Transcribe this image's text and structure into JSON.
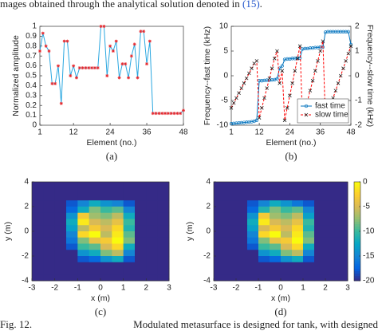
{
  "top_text": [
    "mages obtained through the analytical solution denoted in ",
    "(15)",
    "."
  ],
  "caption": [
    "Fig. 12.",
    "Modulated metasurface is designed for tank, with designed"
  ],
  "chart_data": [
    {
      "type": "line",
      "label": "(a)",
      "xlabel": "Element (no.)",
      "ylabel": "Normalized amplitude",
      "x": [
        1,
        2,
        3,
        4,
        5,
        6,
        7,
        8,
        9,
        10,
        11,
        12,
        13,
        14,
        15,
        16,
        17,
        18,
        19,
        20,
        21,
        22,
        23,
        24,
        25,
        26,
        27,
        28,
        29,
        30,
        31,
        32,
        33,
        34,
        35,
        36,
        37,
        38,
        39,
        40,
        41,
        42,
        43,
        44,
        45,
        46,
        47,
        48
      ],
      "series": [
        {
          "color": "#2aa7e0",
          "marker_color": "#e8262b",
          "values": [
            0.75,
            0.93,
            0.8,
            0.75,
            0.42,
            0.42,
            0.6,
            0.22,
            0.85,
            0.85,
            0.5,
            0.6,
            0.48,
            0.58,
            0.58,
            0.58,
            0.58,
            0.58,
            0.58,
            0.58,
            1,
            1,
            0.5,
            0.8,
            0.75,
            0.85,
            0.48,
            0.62,
            0.62,
            0.48,
            0.7,
            0.82,
            0.48,
            0.95,
            0.95,
            0.62,
            0.85,
            0.12,
            0.12,
            0.12,
            0.12,
            0.12,
            0.12,
            0.12,
            0.12,
            0.12,
            0.12,
            0.15
          ]
        }
      ],
      "xlim": [
        1,
        48
      ],
      "xticks": [
        1,
        12,
        24,
        36,
        48
      ],
      "ylim": [
        0,
        1
      ],
      "yticks": [
        0,
        0.1,
        0.2,
        0.3,
        0.4,
        0.5,
        0.6,
        0.7,
        0.8,
        0.9,
        1
      ]
    },
    {
      "type": "line",
      "label": "(b)",
      "xlabel": "Element (no.)",
      "ylabel": "Frequency--fast time (kHz)",
      "y2label": "Frequency--slow time (kHz)",
      "x": [
        1,
        2,
        3,
        4,
        5,
        6,
        7,
        8,
        9,
        10,
        11,
        12,
        13,
        14,
        15,
        16,
        17,
        18,
        19,
        20,
        21,
        22,
        23,
        24,
        25,
        26,
        27,
        28,
        29,
        30,
        31,
        32,
        33,
        34,
        35,
        36,
        37,
        38,
        39,
        40,
        41,
        42,
        43,
        44,
        45,
        46,
        47,
        48
      ],
      "series": [
        {
          "name": "fast time",
          "color": "#0072bd",
          "marker": "circle",
          "values": [
            -9.7,
            -9.65,
            -9.6,
            -9.55,
            -9.5,
            -9.45,
            -9.4,
            -9.35,
            -9.3,
            -9.2,
            -9.0,
            -1.0,
            -1.0,
            -0.95,
            -0.9,
            -0.9,
            -0.85,
            -0.8,
            -0.6,
            1.5,
            2.0,
            3.3,
            3.4,
            3.4,
            3.5,
            3.5,
            3.6,
            3.6,
            5.4,
            5.5,
            5.5,
            5.6,
            5.6,
            5.7,
            5.7,
            5.8,
            5.8,
            8.8,
            8.9,
            8.9,
            8.9,
            8.9,
            8.9,
            8.9,
            8.9,
            8.9,
            8.9,
            6.3
          ]
        },
        {
          "name": "slow time",
          "color": "#ff0000",
          "marker": "x",
          "marker_color": "#222222",
          "dashed": true,
          "axis": "y2",
          "values": [
            -1.3,
            -1.1,
            -0.9,
            -0.7,
            -0.5,
            -0.3,
            -0.1,
            0.1,
            0.3,
            0.5,
            0.6,
            -1.7,
            -1.3,
            -0.9,
            -0.5,
            -0.1,
            0.3,
            0.7,
            1.0,
            -0.3,
            0.2,
            -1.8,
            -1.3,
            -0.8,
            -0.3,
            0.2,
            0.7,
            1.2,
            -1.8,
            -1.4,
            -1.0,
            -0.6,
            -0.2,
            0.2,
            0.6,
            1.0,
            1.4,
            -1.8,
            -1.5,
            -1.2,
            -0.9,
            -0.6,
            -0.3,
            0.0,
            0.3,
            0.6,
            0.9,
            1.2
          ]
        }
      ],
      "xlim": [
        1,
        48
      ],
      "xticks": [
        1,
        12,
        24,
        36,
        48
      ],
      "ylim": [
        -10,
        10
      ],
      "yticks": [
        -10,
        -5,
        0,
        5,
        10
      ],
      "y2lim": [
        -2,
        2
      ],
      "y2ticks": [
        -2,
        -1,
        0,
        1,
        2
      ],
      "legend": "lower right"
    },
    {
      "type": "heatmap",
      "label": "(c)",
      "xlabel": "x (m)",
      "ylabel": "y (m)",
      "xlim": [
        -3,
        3
      ],
      "xticks": [
        -3,
        -2,
        -1,
        0,
        1,
        2,
        3
      ],
      "ylim": [
        -4,
        4
      ],
      "yticks": [
        -4,
        -2,
        0,
        2,
        4
      ],
      "zlim": [
        -20,
        0
      ],
      "colorscale": [
        "#352a87",
        "#0363e1",
        "#1485d4",
        "#06a7c6",
        "#38b99e",
        "#92bf73",
        "#d9ba56",
        "#fcce2e",
        "#f9fb0e"
      ],
      "z": [
        [
          -20,
          -20,
          -20,
          -20,
          -20,
          -20,
          -20,
          -20,
          -20,
          -20,
          -20,
          -20
        ],
        [
          -20,
          -20,
          -20,
          -20,
          -20,
          -20,
          -20,
          -20,
          -20,
          -20,
          -20,
          -20
        ],
        [
          -20,
          -20,
          -20,
          -20,
          -20,
          -20,
          -20,
          -20,
          -20,
          -20,
          -20,
          -20
        ],
        [
          -20,
          -20,
          -20,
          -18,
          -15,
          -12,
          -14,
          -15,
          -18,
          -20,
          -20,
          -20
        ],
        [
          -20,
          -20,
          -20,
          -17,
          -12,
          -8,
          -10,
          -9,
          -15,
          -20,
          -20,
          -20
        ],
        [
          -20,
          -20,
          -20,
          -14,
          -3,
          -7,
          -8,
          -6,
          -12,
          -20,
          -20,
          -20
        ],
        [
          -20,
          -20,
          -20,
          -12,
          -1,
          -5,
          -6,
          -4,
          -10,
          -20,
          -20,
          -20
        ],
        [
          -20,
          -20,
          -20,
          -13,
          -6,
          -3,
          -5,
          -2,
          -11,
          -20,
          -20,
          -20
        ],
        [
          -20,
          -20,
          -20,
          -15,
          -2,
          0,
          -6,
          -1,
          -9,
          -20,
          -20,
          -20
        ],
        [
          -20,
          -20,
          -20,
          -16,
          -8,
          -4,
          -3,
          0,
          -8,
          -20,
          -20,
          -20
        ],
        [
          -20,
          -20,
          -20,
          -18,
          -10,
          -9,
          -5,
          -2,
          -12,
          -20,
          -20,
          -20
        ],
        [
          -20,
          -20,
          -20,
          -20,
          -14,
          -12,
          -8,
          -6,
          -15,
          -20,
          -20,
          -20
        ],
        [
          -20,
          -20,
          -20,
          -20,
          -18,
          -17,
          -14,
          -12,
          -18,
          -20,
          -20,
          -20
        ],
        [
          -20,
          -20,
          -20,
          -20,
          -20,
          -20,
          -20,
          -20,
          -20,
          -20,
          -20,
          -20
        ],
        [
          -20,
          -20,
          -20,
          -20,
          -20,
          -20,
          -20,
          -20,
          -20,
          -20,
          -20,
          -20
        ],
        [
          -20,
          -20,
          -20,
          -20,
          -20,
          -20,
          -20,
          -20,
          -20,
          -20,
          -20,
          -20
        ]
      ]
    },
    {
      "type": "heatmap",
      "label": "(d)",
      "xlabel": "x (m)",
      "ylabel": "y (m)",
      "xlim": [
        -3,
        3
      ],
      "xticks": [
        -3,
        -2,
        -1,
        0,
        1,
        2,
        3
      ],
      "ylim": [
        -4,
        4
      ],
      "yticks": [
        -4,
        -2,
        0,
        2,
        4
      ],
      "zlim": [
        -20,
        0
      ],
      "zticks": [
        -20,
        -15,
        -10,
        -5,
        0
      ],
      "colorbar": true,
      "colorscale": [
        "#352a87",
        "#0363e1",
        "#1485d4",
        "#06a7c6",
        "#38b99e",
        "#92bf73",
        "#d9ba56",
        "#fcce2e",
        "#f9fb0e"
      ],
      "z": [
        [
          -20,
          -20,
          -20,
          -20,
          -20,
          -20,
          -20,
          -20,
          -20,
          -20,
          -20,
          -20
        ],
        [
          -20,
          -20,
          -20,
          -20,
          -20,
          -20,
          -20,
          -20,
          -20,
          -20,
          -20,
          -20
        ],
        [
          -20,
          -20,
          -20,
          -20,
          -20,
          -20,
          -20,
          -20,
          -20,
          -20,
          -20,
          -20
        ],
        [
          -20,
          -20,
          -20,
          -18,
          -15,
          -12,
          -14,
          -16,
          -18,
          -20,
          -20,
          -20
        ],
        [
          -20,
          -20,
          -20,
          -17,
          -11,
          -8,
          -10,
          -9,
          -15,
          -20,
          -20,
          -20
        ],
        [
          -20,
          -20,
          -20,
          -14,
          -3,
          -7,
          -8,
          -6,
          -13,
          -20,
          -20,
          -20
        ],
        [
          -20,
          -20,
          -20,
          -12,
          -1,
          -5,
          -6,
          -4,
          -10,
          -20,
          -20,
          -20
        ],
        [
          -20,
          -20,
          -20,
          -13,
          -5,
          -3,
          -5,
          -2,
          -11,
          -20,
          -20,
          -20
        ],
        [
          -20,
          -20,
          -20,
          -15,
          -2,
          0,
          -6,
          -1,
          -9,
          -20,
          -20,
          -20
        ],
        [
          -20,
          -20,
          -20,
          -16,
          -8,
          -4,
          -3,
          0,
          -8,
          -20,
          -20,
          -20
        ],
        [
          -20,
          -20,
          -20,
          -18,
          -10,
          -9,
          -5,
          -2,
          -12,
          -20,
          -20,
          -20
        ],
        [
          -20,
          -20,
          -20,
          -20,
          -14,
          -12,
          -8,
          -6,
          -15,
          -20,
          -20,
          -20
        ],
        [
          -20,
          -20,
          -20,
          -20,
          -18,
          -17,
          -14,
          -12,
          -18,
          -20,
          -20,
          -20
        ],
        [
          -20,
          -20,
          -20,
          -20,
          -20,
          -20,
          -20,
          -20,
          -20,
          -20,
          -20,
          -20
        ],
        [
          -20,
          -20,
          -20,
          -20,
          -20,
          -20,
          -20,
          -20,
          -20,
          -20,
          -20,
          -20
        ],
        [
          -20,
          -20,
          -20,
          -20,
          -20,
          -20,
          -20,
          -20,
          -20,
          -20,
          -20,
          -20
        ]
      ]
    }
  ]
}
